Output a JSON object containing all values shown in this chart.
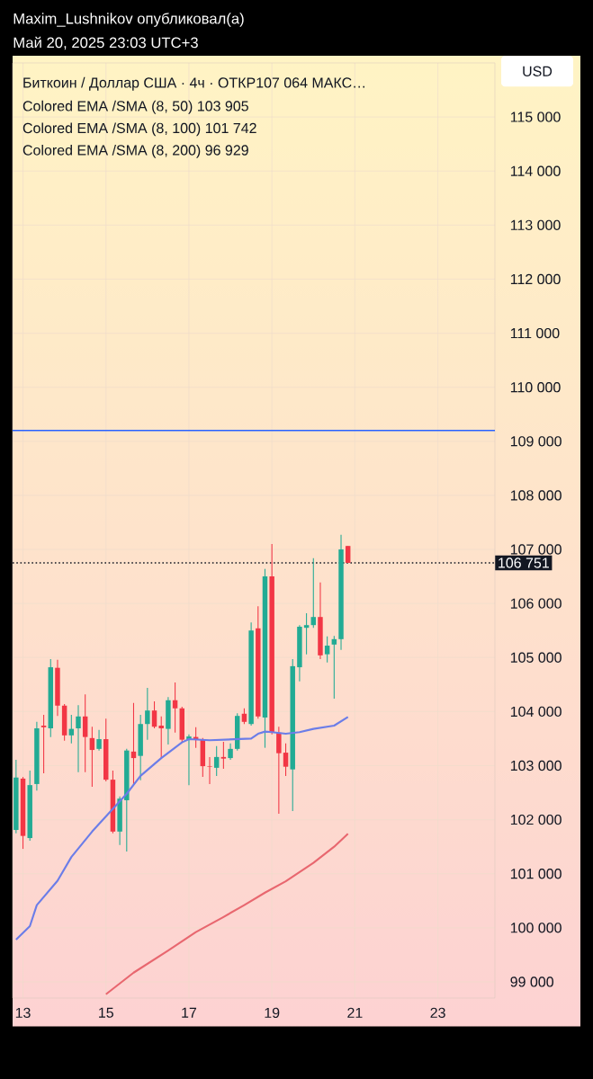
{
  "chart_data": {
    "type": "candlestick",
    "title": "Биткоин / Доллар США · 4ч ·",
    "subtitle": "ОТКР107 064  МАКС…",
    "ylabel": "USD",
    "annotations": [
      "Maxim_Lushnikov опубликовал(а)",
      "Май 20, 2025 23:03 UTC+3",
      "Colored EMA /SMA (8, 50)  103 905",
      "Colored EMA /SMA (8, 100)  101 742",
      "Colored EMA /SMA (8, 200)  96 929"
    ],
    "x": [
      "2025-05-12T20:00",
      "2025-05-13T00:00",
      "2025-05-13T04:00",
      "2025-05-13T08:00",
      "2025-05-13T12:00",
      "2025-05-13T16:00",
      "2025-05-13T20:00",
      "2025-05-14T00:00",
      "2025-05-14T04:00",
      "2025-05-14T08:00",
      "2025-05-14T12:00",
      "2025-05-14T16:00",
      "2025-05-14T20:00",
      "2025-05-15T00:00",
      "2025-05-15T04:00",
      "2025-05-15T08:00",
      "2025-05-15T12:00",
      "2025-05-15T16:00",
      "2025-05-15T20:00",
      "2025-05-16T00:00",
      "2025-05-16T04:00",
      "2025-05-16T08:00",
      "2025-05-16T12:00",
      "2025-05-16T16:00",
      "2025-05-16T20:00",
      "2025-05-17T00:00",
      "2025-05-17T04:00",
      "2025-05-17T08:00",
      "2025-05-17T12:00",
      "2025-05-17T16:00",
      "2025-05-17T20:00",
      "2025-05-18T00:00",
      "2025-05-18T04:00",
      "2025-05-18T08:00",
      "2025-05-18T12:00",
      "2025-05-18T16:00",
      "2025-05-18T20:00",
      "2025-05-19T00:00",
      "2025-05-19T04:00",
      "2025-05-19T08:00",
      "2025-05-19T12:00",
      "2025-05-19T16:00",
      "2025-05-19T20:00",
      "2025-05-20T00:00",
      "2025-05-20T04:00",
      "2025-05-20T08:00",
      "2025-05-20T12:00",
      "2025-05-20T16:00",
      "2025-05-20T20:00"
    ],
    "ohlc": [
      [
        101810,
        103110,
        101750,
        102780
      ],
      [
        102760,
        102790,
        101460,
        101700
      ],
      [
        101660,
        102910,
        101610,
        102640
      ],
      [
        102660,
        103810,
        102540,
        103690
      ],
      [
        103740,
        103940,
        102860,
        103710
      ],
      [
        103690,
        104970,
        103530,
        104820
      ],
      [
        104810,
        104960,
        103920,
        104110
      ],
      [
        104110,
        104140,
        103460,
        103560
      ],
      [
        103560,
        103940,
        103410,
        103680
      ],
      [
        103690,
        104120,
        102880,
        103910
      ],
      [
        103910,
        104320,
        102880,
        103530
      ],
      [
        103510,
        103720,
        102610,
        103290
      ],
      [
        103310,
        103660,
        103280,
        103490
      ],
      [
        103490,
        103870,
        102710,
        102740
      ],
      [
        102740,
        102910,
        101750,
        101780
      ],
      [
        101780,
        102430,
        101530,
        102390
      ],
      [
        102360,
        103310,
        101410,
        103280
      ],
      [
        103260,
        104160,
        102640,
        103140
      ],
      [
        103180,
        103940,
        102730,
        103770
      ],
      [
        103770,
        104440,
        103480,
        104020
      ],
      [
        104020,
        104190,
        103690,
        103720
      ],
      [
        103740,
        103910,
        103130,
        103690
      ],
      [
        103680,
        104270,
        103390,
        104210
      ],
      [
        104210,
        104540,
        103610,
        104060
      ],
      [
        104060,
        104090,
        103430,
        103480
      ],
      [
        103480,
        103580,
        102640,
        103540
      ],
      [
        103530,
        103710,
        103330,
        103480
      ],
      [
        103480,
        103510,
        102790,
        102990
      ],
      [
        102990,
        103160,
        102660,
        102980
      ],
      [
        102960,
        103360,
        102810,
        103160
      ],
      [
        103160,
        103440,
        102940,
        103130
      ],
      [
        103140,
        103410,
        103110,
        103310
      ],
      [
        103310,
        103970,
        103280,
        103920
      ],
      [
        103960,
        104060,
        103770,
        103810
      ],
      [
        103770,
        105650,
        103740,
        105500
      ],
      [
        105540,
        105950,
        103870,
        103910
      ],
      [
        103890,
        106640,
        103330,
        106500
      ],
      [
        106500,
        107100,
        103580,
        103610
      ],
      [
        103610,
        103720,
        102110,
        103230
      ],
      [
        103240,
        103410,
        102810,
        102980
      ],
      [
        102930,
        104970,
        102160,
        104840
      ],
      [
        104820,
        105600,
        104560,
        105570
      ],
      [
        105550,
        105820,
        105060,
        105600
      ],
      [
        105600,
        106840,
        105550,
        105750
      ],
      [
        105750,
        106390,
        104970,
        105040
      ],
      [
        105060,
        105390,
        104910,
        105220
      ],
      [
        105240,
        105400,
        104240,
        105340
      ],
      [
        105340,
        107270,
        105140,
        107000
      ],
      [
        107064,
        107064,
        106751,
        106751
      ]
    ],
    "colors": [
      "#22ab94",
      "#f23645",
      "#22ab94",
      "#22ab94",
      "#f23645",
      "#22ab94",
      "#f23645",
      "#f23645",
      "#22ab94",
      "#22ab94",
      "#f23645",
      "#f23645",
      "#22ab94",
      "#f23645",
      "#f23645",
      "#22ab94",
      "#22ab94",
      "#f23645",
      "#22ab94",
      "#22ab94",
      "#f23645",
      "#f23645",
      "#22ab94",
      "#f23645",
      "#f23645",
      "#22ab94",
      "#f23645",
      "#f23645",
      "#f23645",
      "#22ab94",
      "#f23645",
      "#22ab94",
      "#22ab94",
      "#f23645",
      "#22ab94",
      "#f23645",
      "#22ab94",
      "#f23645",
      "#f23645",
      "#f23645",
      "#22ab94",
      "#22ab94",
      "#22ab94",
      "#22ab94",
      "#f23645",
      "#22ab94",
      "#22ab94",
      "#22ab94",
      "#f23645"
    ],
    "series": [
      {
        "type": "line",
        "color": "#6b7de8",
        "x": [
          "2025-05-12T20:00",
          "2025-05-13T04:00",
          "2025-05-13T08:00",
          "2025-05-13T20:00",
          "2025-05-14T04:00",
          "2025-05-14T16:00",
          "2025-05-15T04:00",
          "2025-05-15T12:00",
          "2025-05-15T20:00",
          "2025-05-16T08:00",
          "2025-05-16T20:00",
          "2025-05-17T00:00",
          "2025-05-17T12:00",
          "2025-05-18T04:00",
          "2025-05-18T12:00",
          "2025-05-18T16:00",
          "2025-05-18T20:00",
          "2025-05-19T00:00",
          "2025-05-19T08:00",
          "2025-05-19T16:00",
          "2025-05-20T00:00",
          "2025-05-20T12:00",
          "2025-05-20T20:00"
        ],
        "values": [
          99780,
          100030,
          100420,
          100870,
          101310,
          101780,
          102200,
          102480,
          102810,
          103140,
          103430,
          103490,
          103470,
          103490,
          103500,
          103590,
          103630,
          103620,
          103590,
          103620,
          103680,
          103740,
          103900
        ]
      },
      {
        "type": "line",
        "color": "#e8676f",
        "x": [
          "2025-05-15T00:00",
          "2025-05-15T16:00",
          "2025-05-16T12:00",
          "2025-05-17T04:00",
          "2025-05-17T20:00",
          "2025-05-18T08:00",
          "2025-05-18T20:00",
          "2025-05-19T08:00",
          "2025-05-20T00:00",
          "2025-05-20T12:00",
          "2025-05-20T20:00"
        ],
        "values": [
          98770,
          99170,
          99580,
          99920,
          100200,
          100420,
          100650,
          100860,
          101200,
          101500,
          101740
        ]
      }
    ],
    "xlim": [
      "2025-05-12T18:00",
      "2025-05-24T09:00"
    ],
    "xticks": [
      {
        "value": "2025-05-13",
        "label": "13"
      },
      {
        "value": "2025-05-15",
        "label": "15"
      },
      {
        "value": "2025-05-17",
        "label": "17"
      },
      {
        "value": "2025-05-19",
        "label": "19"
      },
      {
        "value": "2025-05-21",
        "label": "21"
      },
      {
        "value": "2025-05-23",
        "label": "23"
      }
    ],
    "ylim": [
      98700,
      116000
    ],
    "yticks": [
      {
        "value": 99000,
        "label": "99 000"
      },
      {
        "value": 100000,
        "label": "100 000"
      },
      {
        "value": 101000,
        "label": "101 000"
      },
      {
        "value": 102000,
        "label": "102 000"
      },
      {
        "value": 103000,
        "label": "103 000"
      },
      {
        "value": 104000,
        "label": "104 000"
      },
      {
        "value": 105000,
        "label": "105 000"
      },
      {
        "value": 106000,
        "label": "106 000"
      },
      {
        "value": 107000,
        "label": "107 000"
      },
      {
        "value": 108000,
        "label": "108 000"
      },
      {
        "value": 109000,
        "label": "109 000"
      },
      {
        "value": 110000,
        "label": "110 000"
      },
      {
        "value": 111000,
        "label": "111 000"
      },
      {
        "value": 112000,
        "label": "112 000"
      },
      {
        "value": 113000,
        "label": "113 000"
      },
      {
        "value": 114000,
        "label": "114 000"
      },
      {
        "value": 115000,
        "label": "115 000"
      }
    ],
    "ref_lines": [
      {
        "axis": "y",
        "value": 109200,
        "color": "#2962ff"
      },
      {
        "axis": "y",
        "value": 106751,
        "label": "106 751",
        "color": "#131722",
        "line_style": "dotted"
      }
    ],
    "grid": true,
    "marker": "none"
  }
}
